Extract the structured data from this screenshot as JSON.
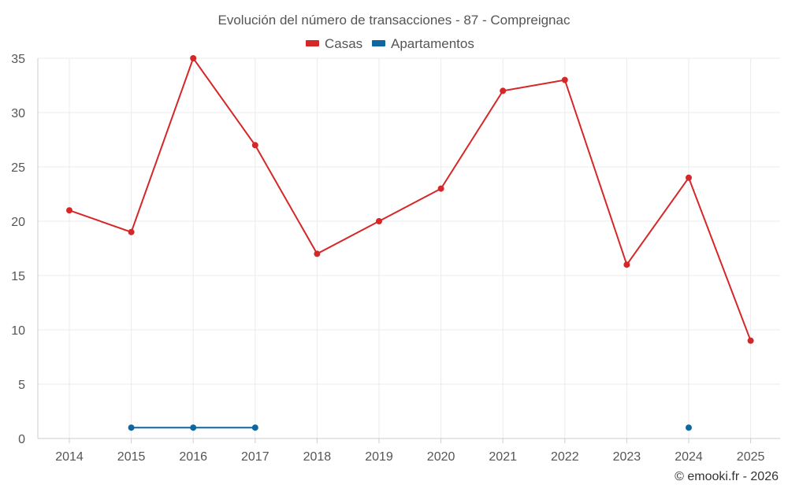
{
  "chart_data": {
    "type": "line",
    "title": "Evolución del número de transacciones - 87 - Compreignac",
    "xlabel": "",
    "ylabel": "",
    "categories": [
      "2014",
      "2015",
      "2016",
      "2017",
      "2018",
      "2019",
      "2020",
      "2021",
      "2022",
      "2023",
      "2024",
      "2025"
    ],
    "ylim": [
      0,
      35
    ],
    "yticks": [
      0,
      5,
      10,
      15,
      20,
      25,
      30,
      35
    ],
    "grid": true,
    "legend_position": "top-center",
    "series": [
      {
        "name": "Casas",
        "color": "#d62728",
        "values": [
          21,
          19,
          35,
          27,
          17,
          20,
          23,
          32,
          33,
          16,
          24,
          9
        ]
      },
      {
        "name": "Apartamentos",
        "color": "#0f67a0",
        "values": [
          null,
          1,
          1,
          1,
          null,
          null,
          null,
          null,
          null,
          null,
          1,
          null
        ]
      }
    ]
  },
  "credit": "© emooki.fr - 2026"
}
